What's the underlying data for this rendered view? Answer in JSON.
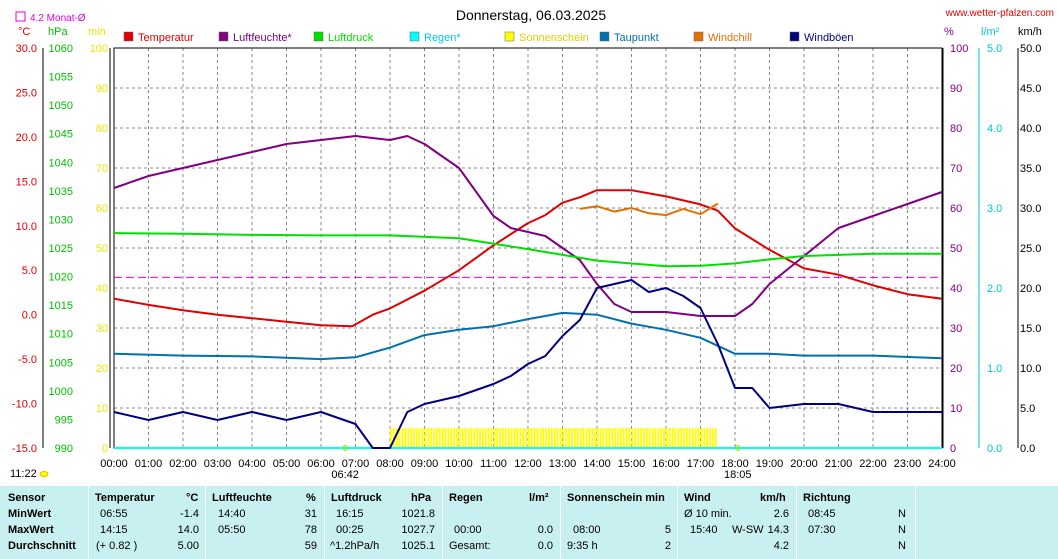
{
  "header": {
    "title": "Donnerstag, 06.03.2025",
    "site": "www.wetter-pfalzen.com",
    "monat_label": "4.2 Monat-Ø"
  },
  "chart_data": {
    "type": "line",
    "title": "Donnerstag, 06.03.2025",
    "x_ticks": [
      "00:00",
      "01:00",
      "02:00",
      "03:00",
      "04:00",
      "05:00",
      "06:00",
      "07:00",
      "08:00",
      "09:00",
      "10:00",
      "11:00",
      "12:00",
      "13:00",
      "14:00",
      "15:00",
      "16:00",
      "17:00",
      "18:00",
      "19:00",
      "20:00",
      "21:00",
      "22:00",
      "23:00",
      "24:00"
    ],
    "x_range": [
      0,
      24
    ],
    "x_markers": [
      {
        "label": "06:42",
        "hour": 6.7
      },
      {
        "label": "18:05",
        "hour": 18.08
      }
    ],
    "axes": {
      "temp": {
        "unit": "°C",
        "range": [
          -15,
          30
        ],
        "ticks": [
          "30.0",
          "25.0",
          "20.0",
          "15.0",
          "10.0",
          "5.0",
          "0.0",
          "-5.0",
          "-10.0",
          "-15.0"
        ],
        "color": "#e00000"
      },
      "press": {
        "unit": "hPa",
        "range": [
          990,
          1060
        ],
        "ticks": [
          "1060",
          "1055",
          "1050",
          "1045",
          "1040",
          "1035",
          "1030",
          "1025",
          "1020",
          "1015",
          "1010",
          "1005",
          "1000",
          "995",
          "990"
        ],
        "color": "#00c000"
      },
      "sun": {
        "unit": "min",
        "range": [
          0,
          100
        ],
        "ticks": [
          "100",
          "90",
          "80",
          "70",
          "60",
          "50",
          "40",
          "30",
          "20",
          "10",
          "0"
        ],
        "color": "#e8e800"
      },
      "hum": {
        "unit": "%",
        "range": [
          0,
          100
        ],
        "ticks": [
          "100",
          "90",
          "80",
          "70",
          "60",
          "50",
          "40",
          "30",
          "20",
          "10",
          "0"
        ],
        "color": "#800080"
      },
      "rain": {
        "unit": "l/m²",
        "range": [
          0,
          5
        ],
        "ticks": [
          "5.0",
          "4.0",
          "3.0",
          "2.0",
          "1.0",
          "0.0"
        ],
        "color": "#00c8c8"
      },
      "wind": {
        "unit": "km/h",
        "range": [
          0,
          50
        ],
        "ticks": [
          "50.0",
          "45.0",
          "40.0",
          "35.0",
          "30.0",
          "25.0",
          "20.0",
          "15.0",
          "10.0",
          "5.0",
          "0.0"
        ],
        "color": "#000000"
      }
    },
    "legend": [
      {
        "name": "Temperatur",
        "color": "#e00000"
      },
      {
        "name": "Luftfeuchte*",
        "color": "#800080"
      },
      {
        "name": "Luftdruck",
        "color": "#00e000"
      },
      {
        "name": "Regen*",
        "color": "#00ffff"
      },
      {
        "name": "Sonnenschein",
        "color": "#ffff00"
      },
      {
        "name": "Taupunkt",
        "color": "#0070b0"
      },
      {
        "name": "Windchill",
        "color": "#e07000"
      },
      {
        "name": "Windböen",
        "color": "#000080"
      }
    ],
    "monat_avg_temp": 4.2,
    "series": [
      {
        "name": "Temperatur",
        "axis": "temp",
        "color": "#e00000",
        "x": [
          0,
          1,
          2,
          3,
          4,
          5,
          6,
          6.9,
          7.5,
          8,
          9,
          10,
          11,
          12,
          12.5,
          13,
          13.5,
          14,
          15,
          16,
          17,
          17.5,
          18,
          19,
          20,
          21,
          22,
          23,
          24
        ],
        "y": [
          1.8,
          1.1,
          0.5,
          0.0,
          -0.4,
          -0.8,
          -1.2,
          -1.3,
          0.0,
          0.7,
          2.7,
          5.0,
          7.8,
          10.3,
          11.2,
          12.6,
          13.2,
          14.0,
          14.0,
          13.3,
          12.4,
          11.7,
          9.7,
          7.3,
          5.2,
          4.5,
          3.3,
          2.3,
          1.8
        ]
      },
      {
        "name": "Luftfeuchte*",
        "axis": "hum",
        "color": "#800080",
        "x": [
          0,
          1,
          2,
          3,
          4,
          5,
          6,
          7,
          8,
          8.5,
          9,
          10,
          11,
          11.5,
          12,
          12.5,
          13,
          13.5,
          14,
          14.5,
          15,
          16,
          17,
          17.5,
          18,
          18.5,
          19,
          20,
          21,
          22,
          23,
          24
        ],
        "y": [
          65,
          68,
          70,
          72,
          74,
          76,
          77,
          78,
          77,
          78,
          76,
          70,
          58,
          55,
          54,
          53,
          50,
          47,
          41,
          36,
          34,
          34,
          33,
          33,
          33,
          36,
          41,
          48,
          55,
          58,
          61,
          64
        ]
      },
      {
        "name": "Luftdruck",
        "axis": "press",
        "color": "#00e000",
        "x": [
          0,
          2,
          4,
          6,
          8,
          10,
          12,
          14,
          16,
          17,
          18,
          19,
          20,
          22,
          24
        ],
        "y": [
          1027.6,
          1027.5,
          1027.3,
          1027.2,
          1027.2,
          1026.7,
          1024.8,
          1022.8,
          1021.8,
          1021.9,
          1022.3,
          1023.0,
          1023.6,
          1024.0,
          1024.0
        ]
      },
      {
        "name": "Taupunkt",
        "axis": "temp",
        "color": "#0070b0",
        "x": [
          0,
          2,
          4,
          6,
          7,
          8,
          9,
          10,
          11,
          12,
          13,
          14,
          15,
          16,
          17,
          18,
          19,
          20,
          22,
          24
        ],
        "y": [
          -4.4,
          -4.6,
          -4.7,
          -5.0,
          -4.8,
          -3.7,
          -2.3,
          -1.7,
          -1.3,
          -0.5,
          0.2,
          0.0,
          -1.0,
          -1.7,
          -2.6,
          -4.4,
          -4.4,
          -4.6,
          -4.6,
          -4.9
        ]
      },
      {
        "name": "Windchill",
        "axis": "temp",
        "color": "#e07000",
        "x": [
          13.5,
          14,
          14.5,
          15,
          15.5,
          16,
          16.5,
          17,
          17.5
        ],
        "y": [
          11.9,
          12.2,
          11.6,
          12.0,
          11.4,
          11.2,
          11.9,
          11.3,
          12.5
        ]
      },
      {
        "name": "Windböen",
        "axis": "wind",
        "color": "#000080",
        "x": [
          0,
          1,
          2,
          3,
          4,
          5,
          6,
          7,
          7.5,
          8,
          8.5,
          9,
          10,
          11,
          11.5,
          12,
          12.5,
          13,
          13.5,
          14,
          14.5,
          15,
          15.5,
          16,
          16.5,
          17,
          17.5,
          18,
          18.5,
          19,
          20,
          21,
          22,
          23,
          24
        ],
        "y": [
          4.5,
          3.5,
          4.5,
          3.5,
          4.5,
          3.5,
          4.5,
          3.0,
          0,
          0,
          4.5,
          5.5,
          6.5,
          8.0,
          9.0,
          10.5,
          11.5,
          14.0,
          16.0,
          20.0,
          20.5,
          21.0,
          19.5,
          20.0,
          19.0,
          17.5,
          13.0,
          7.5,
          7.5,
          5.0,
          5.5,
          5.5,
          4.5,
          4.5,
          4.5
        ]
      }
    ],
    "sunshine": {
      "name": "Sonnenschein",
      "axis": "sun",
      "start": 8.0,
      "end": 17.5,
      "value": 5
    }
  },
  "table": {
    "headers": [
      "Sensor",
      "Temperatur",
      "°C",
      "Luftfeuchte",
      "%",
      "Luftdruck",
      "hPa",
      "Regen",
      "l/m²",
      "Sonnenschein min",
      "Wind",
      "km/h",
      "Richtung"
    ],
    "rows": [
      {
        "label": "MinWert",
        "t_time": "06:55",
        "t_val": "-1.4",
        "h_time": "14:40",
        "h_val": "31",
        "p_time": "16:15",
        "p_val": "1021.8",
        "r_time": "",
        "r_val": "",
        "s_time": "",
        "s_val": "",
        "w_time": "Ø 10 min.",
        "w_dir": "",
        "w_val": "2.6",
        "d_time": "08:45",
        "d_val": "N"
      },
      {
        "label": "MaxWert",
        "t_time": "14:15",
        "t_val": "14.0",
        "h_time": "05:50",
        "h_val": "78",
        "p_time": "00:25",
        "p_val": "1027.7",
        "r_time": "00:00",
        "r_val": "0.0",
        "s_time": "08:00",
        "s_val": "5",
        "w_time": "15:40",
        "w_dir": "W-SW",
        "w_val": "14.3",
        "d_time": "07:30",
        "d_val": "N"
      },
      {
        "label": "Durchschnitt",
        "t_time": "(+ 0.82 )",
        "t_val": "5.00",
        "h_time": "",
        "h_val": "59",
        "p_time": "^1.2hPa/h",
        "p_val": "1025.1",
        "r_time": "Gesamt:",
        "r_val": "0.0",
        "s_time": "9:35 h",
        "s_val": "2",
        "w_time": "",
        "w_dir": "",
        "w_val": "4.2",
        "d_time": "",
        "d_val": "N"
      }
    ]
  },
  "footer": {
    "time": "11:22"
  }
}
